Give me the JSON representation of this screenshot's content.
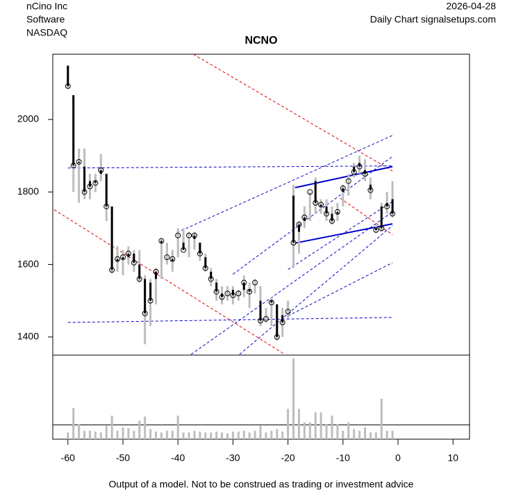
{
  "chart_data": {
    "type": "candlestick",
    "company": "nCino Inc",
    "sector": "Software",
    "exchange": "NASDAQ",
    "date": "2026-04-28",
    "source": "Daily Chart signalsetups.com",
    "title": "NCNO",
    "footer": "Output of a model. Not to be construed as trading or investment advice",
    "xlim": [
      -62.75,
      13
    ],
    "xticks": [
      -60,
      -50,
      -40,
      -30,
      -20,
      -10,
      0,
      10
    ],
    "ylim": [
      1350,
      2180
    ],
    "yticks": [
      1400,
      1600,
      1800,
      2000
    ],
    "volume_lim": [
      0,
      100
    ],
    "volume_line": 17,
    "body_color": "#000000",
    "range_color": "#bdbdbd",
    "volume_color": "#bdbdbd",
    "x": [
      -60,
      -59,
      -58,
      -57,
      -56,
      -55,
      -54,
      -53,
      -52,
      -51,
      -50,
      -49,
      -48,
      -47,
      -46,
      -45,
      -44,
      -43,
      -42,
      -41,
      -40,
      -39,
      -38,
      -37,
      -36,
      -35,
      -34,
      -33,
      -32,
      -31,
      -30,
      -29,
      -28,
      -27,
      -26,
      -25,
      -24,
      -23,
      -22,
      -21,
      -20,
      -19,
      -18,
      -17,
      -16,
      -15,
      -14,
      -13,
      -12,
      -11,
      -10,
      -9,
      -8,
      -7,
      -6,
      -5,
      -4,
      -3,
      -2,
      -1
    ],
    "open": [
      2148,
      2067,
      1880,
      1870,
      1830,
      1830,
      1850,
      1850,
      1760,
      1610,
      1615,
      1620,
      1630,
      1600,
      1560,
      1550,
      1560,
      1660,
      1620,
      1610,
      1680,
      1660,
      1680,
      1670,
      1660,
      1620,
      1580,
      1550,
      1520,
      1520,
      1530,
      1520,
      1530,
      1530,
      1550,
      1500,
      1450,
      1500,
      1490,
      1460,
      1470,
      1790,
      1690,
      1720,
      1800,
      1830,
      1760,
      1760,
      1740,
      1740,
      1800,
      1830,
      1870,
      1880,
      1860,
      1820,
      1700,
      1760,
      1770,
      1780
    ],
    "high": [
      2150,
      2067,
      1920,
      1920,
      1850,
      1850,
      1905,
      1850,
      1760,
      1650,
      1640,
      1650,
      1640,
      1640,
      1570,
      1560,
      1590,
      1670,
      1660,
      1640,
      1700,
      1700,
      1690,
      1690,
      1660,
      1630,
      1590,
      1560,
      1540,
      1540,
      1540,
      1530,
      1570,
      1550,
      1560,
      1540,
      1480,
      1510,
      1490,
      1480,
      1500,
      1820,
      1720,
      1760,
      1800,
      1840,
      1780,
      1780,
      1760,
      1770,
      1820,
      1850,
      1880,
      1900,
      1890,
      1840,
      1710,
      1770,
      1800,
      1830
    ],
    "low": [
      2085,
      1800,
      1770,
      1780,
      1780,
      1800,
      1830,
      1720,
      1575,
      1580,
      1570,
      1600,
      1580,
      1550,
      1380,
      1430,
      1490,
      1560,
      1600,
      1580,
      1620,
      1640,
      1620,
      1640,
      1610,
      1580,
      1540,
      1500,
      1490,
      1500,
      1490,
      1500,
      1510,
      1480,
      1520,
      1430,
      1440,
      1430,
      1390,
      1400,
      1450,
      1590,
      1630,
      1700,
      1720,
      1740,
      1740,
      1720,
      1710,
      1720,
      1760,
      1790,
      1840,
      1850,
      1830,
      1780,
      1690,
      1690,
      1740,
      1730
    ],
    "close": [
      2092,
      1873,
      1883,
      1800,
      1815,
      1825,
      1860,
      1760,
      1585,
      1615,
      1620,
      1630,
      1605,
      1560,
      1465,
      1500,
      1580,
      1665,
      1620,
      1615,
      1680,
      1640,
      1680,
      1680,
      1630,
      1590,
      1560,
      1525,
      1510,
      1520,
      1515,
      1520,
      1550,
      1525,
      1550,
      1445,
      1450,
      1495,
      1400,
      1440,
      1470,
      1660,
      1710,
      1730,
      1800,
      1770,
      1765,
      1740,
      1720,
      1745,
      1810,
      1830,
      1855,
      1870,
      1850,
      1805,
      1695,
      1700,
      1760,
      1740
    ],
    "volume": [
      8,
      37,
      18,
      10,
      10,
      9,
      8,
      16,
      28,
      10,
      14,
      13,
      10,
      22,
      27,
      12,
      9,
      8,
      10,
      10,
      28,
      8,
      8,
      10,
      9,
      8,
      8,
      9,
      8,
      7,
      9,
      9,
      10,
      8,
      10,
      16,
      8,
      10,
      12,
      9,
      36,
      96,
      36,
      20,
      20,
      32,
      32,
      18,
      28,
      18,
      10,
      20,
      12,
      10,
      14,
      8,
      8,
      48,
      10,
      10
    ],
    "lines": [
      {
        "color": "#e00000",
        "dash": true,
        "x": [
          -37.2,
          -1
        ],
        "y": [
          2180,
          1858
        ]
      },
      {
        "color": "#e00000",
        "dash": true,
        "x": [
          -62.5,
          -20.6
        ],
        "y": [
          1751,
          1352
        ]
      },
      {
        "color": "#e00000",
        "dash": true,
        "x": [
          -10.5,
          -1
        ],
        "y": [
          1783,
          1682
        ]
      },
      {
        "color": "#0000cc",
        "dash": true,
        "x": [
          -60,
          -1
        ],
        "y": [
          1866,
          1872
        ]
      },
      {
        "color": "#0000cc",
        "dash": true,
        "x": [
          -60,
          -1
        ],
        "y": [
          1440,
          1454
        ]
      },
      {
        "color": "#0000cc",
        "dash": true,
        "x": [
          -40.2,
          -1
        ],
        "y": [
          1688,
          1956
        ]
      },
      {
        "color": "#0000cc",
        "dash": true,
        "x": [
          -30,
          -1
        ],
        "y": [
          1573,
          1898
        ]
      },
      {
        "color": "#0000cc",
        "dash": true,
        "x": [
          -37.6,
          -1
        ],
        "y": [
          1352,
          1745
        ]
      },
      {
        "color": "#0000cc",
        "dash": true,
        "x": [
          -28.8,
          -1
        ],
        "y": [
          1352,
          1707
        ]
      },
      {
        "color": "#0000cc",
        "dash": true,
        "x": [
          -20,
          -1
        ],
        "y": [
          1458,
          1605
        ]
      },
      {
        "color": "#0000cc",
        "dash": true,
        "x": [
          -20,
          -1
        ],
        "y": [
          1586,
          1774
        ]
      },
      {
        "color": "#0000cc",
        "dash": false,
        "x": [
          -18.7,
          -1
        ],
        "y": [
          1812,
          1870
        ]
      },
      {
        "color": "#0000cc",
        "dash": false,
        "x": [
          -18.7,
          -1
        ],
        "y": [
          1659,
          1712
        ]
      }
    ]
  }
}
